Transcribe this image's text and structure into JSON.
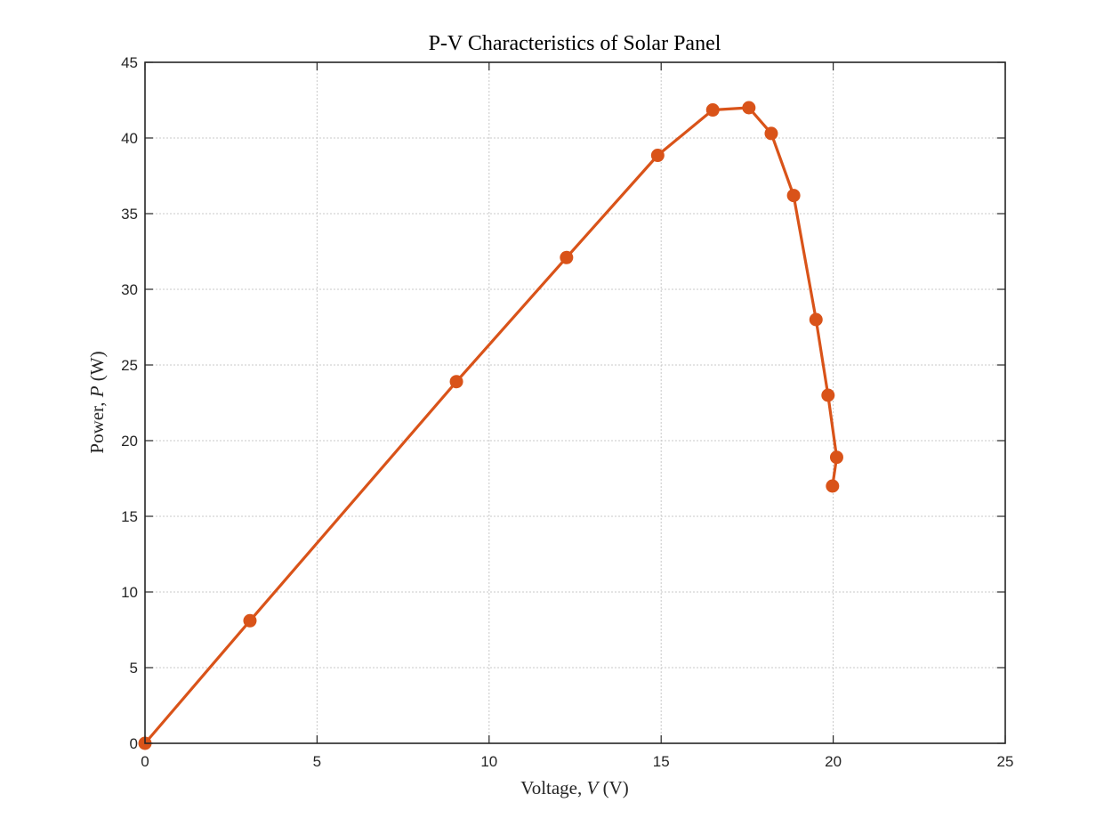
{
  "chart_data": {
    "type": "line",
    "title": "P-V Characteristics of Solar Panel",
    "xlabel": "Voltage, V (V)",
    "ylabel": "Power, P (W)",
    "xlabel_parts": {
      "prefix": "Voltage, ",
      "var": "V",
      "suffix": " (V)"
    },
    "ylabel_parts": {
      "prefix": "Power, ",
      "var": "P",
      "suffix": " (W)"
    },
    "xlim": [
      0,
      25
    ],
    "ylim": [
      0,
      45
    ],
    "xticks": [
      0,
      5,
      10,
      15,
      20,
      25
    ],
    "yticks": [
      0,
      5,
      10,
      15,
      20,
      25,
      30,
      35,
      40,
      45
    ],
    "grid": true,
    "line_color": "#d95319",
    "series": [
      {
        "x": [
          0,
          3.05,
          9.05,
          12.25,
          14.9,
          16.5,
          17.55,
          18.2,
          18.85,
          19.5,
          19.85,
          20.1,
          19.98
        ],
        "y": [
          0,
          8.1,
          23.9,
          32.1,
          38.85,
          41.85,
          42.0,
          40.3,
          36.2,
          28.0,
          23.0,
          18.9,
          17.0
        ]
      }
    ]
  }
}
